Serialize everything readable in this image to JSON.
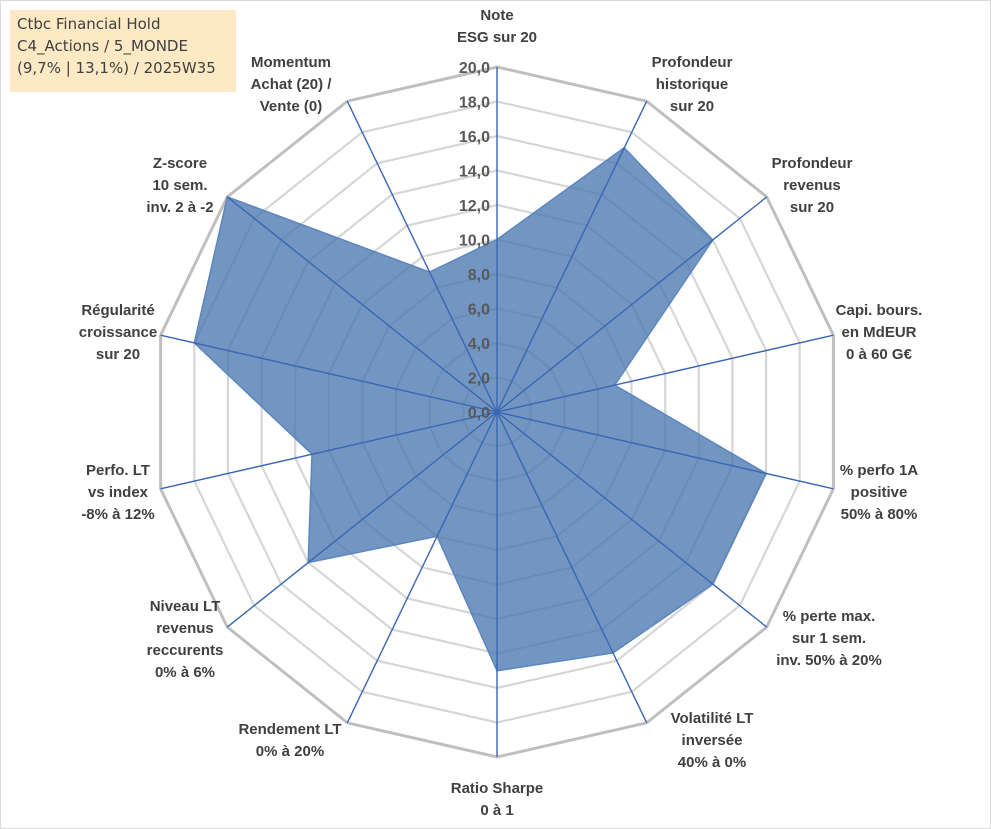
{
  "title_box": {
    "line1": "Ctbc Financial Hold",
    "line2": "C4_Actions / 5_MONDE",
    "line3": "(9,7% | 13,1%) / 2025W35"
  },
  "chart_data": {
    "type": "radar",
    "categories": [
      [
        "Note",
        "ESG sur 20"
      ],
      [
        "Profondeur",
        "historique",
        "sur 20"
      ],
      [
        "Profondeur",
        "revenus",
        "sur 20"
      ],
      [
        "Capi. bours.",
        "en MdEUR",
        "0 à 60 G€"
      ],
      [
        "% perfo 1A",
        "positive",
        "50% à 80%"
      ],
      [
        "% perte max.",
        "sur 1 sem.",
        "inv. 50% à 20%"
      ],
      [
        "Volatilité LT",
        "inversée",
        "40% à 0%"
      ],
      [
        "Ratio Sharpe",
        "0 à 1"
      ],
      [
        "Rendement LT",
        "0% à 20%"
      ],
      [
        "Niveau LT",
        "revenus",
        "reccurents",
        "0% à 6%"
      ],
      [
        "Perfo. LT",
        "vs index",
        "-8% à 12%"
      ],
      [
        "Régularité",
        "croissance",
        "sur 20"
      ],
      [
        "Z-score",
        "10 sem.",
        "inv. 2 à -2"
      ],
      [
        "Momentum",
        "Achat (20) /",
        "Vente (0)"
      ]
    ],
    "series": [
      {
        "values": [
          10.0,
          17.0,
          16.0,
          7.0,
          16.0,
          16.0,
          15.5,
          15.0,
          8.0,
          14.0,
          11.0,
          18.0,
          20.0,
          9.0
        ]
      }
    ],
    "ylim": [
      0,
      20
    ],
    "ticks": [
      "0,0",
      "2,0",
      "4,0",
      "6,0",
      "8,0",
      "10,0",
      "12,0",
      "14,0",
      "16,0",
      "18,0",
      "20,0"
    ],
    "grid": true,
    "colors": {
      "fill": "#4a78b0",
      "spoke": "#3a67b5",
      "grid": "#c4c4c4"
    }
  }
}
